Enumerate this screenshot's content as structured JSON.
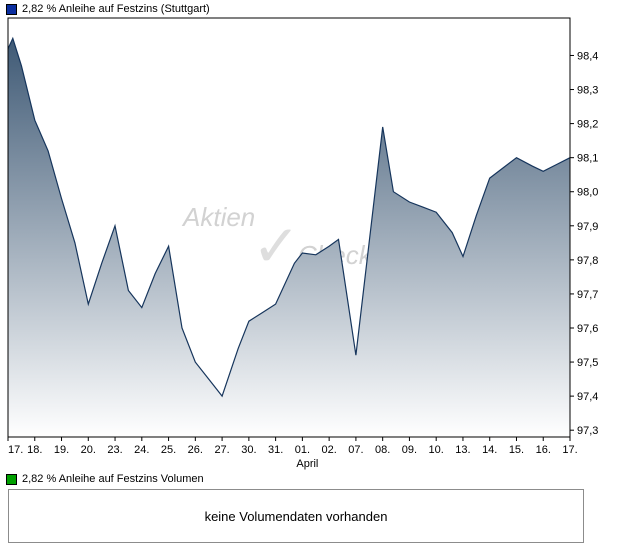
{
  "legend_price": {
    "label": "2,82 % Anleihe auf Festzins (Stuttgart)",
    "swatch_color": "#0b2fa0"
  },
  "legend_volume": {
    "label": "2,82 % Anleihe auf Festzins Volumen",
    "swatch_color": "#00a000"
  },
  "volume_panel": {
    "message": "keine Volumendaten vorhanden"
  },
  "watermark": {
    "part1": "Aktien",
    "check_icon": "✓",
    "part2": "Check"
  },
  "chart_data": {
    "type": "area",
    "title": "2,82 % Anleihe auf Festzins (Stuttgart)",
    "grid": false,
    "legend_position": "top-left",
    "x_axis_secondary_label": "April",
    "x_tick_labels": [
      "17.",
      "18.",
      "19.",
      "20.",
      "23.",
      "24.",
      "25.",
      "26.",
      "27.",
      "30.",
      "31.",
      "01.",
      "02.",
      "07.",
      "08.",
      "09.",
      "10.",
      "13.",
      "14.",
      "15.",
      "16.",
      "17."
    ],
    "y_ticks": [
      {
        "value": 97.3,
        "label": "97,3"
      },
      {
        "value": 97.4,
        "label": "97,4"
      },
      {
        "value": 97.5,
        "label": "97,5"
      },
      {
        "value": 97.6,
        "label": "97,6"
      },
      {
        "value": 97.7,
        "label": "97,7"
      },
      {
        "value": 97.8,
        "label": "97,8"
      },
      {
        "value": 97.9,
        "label": "97,9"
      },
      {
        "value": 98.0,
        "label": "98,0"
      },
      {
        "value": 98.1,
        "label": "98,1"
      },
      {
        "value": 98.2,
        "label": "98,2"
      },
      {
        "value": 98.3,
        "label": "98,3"
      },
      {
        "value": 98.4,
        "label": "98,4"
      }
    ],
    "ylim": [
      97.28,
      98.51
    ],
    "colors": {
      "line": "#16355c",
      "fill_top": "#35516e",
      "fill_bottom": "#ffffff"
    },
    "series": [
      {
        "name": "2,82 % Anleihe auf Festzins (Stuttgart)",
        "points": [
          [
            0,
            98.42
          ],
          [
            0.18,
            98.45
          ],
          [
            0.5,
            98.37
          ],
          [
            1,
            98.21
          ],
          [
            1.5,
            98.12
          ],
          [
            2,
            97.98
          ],
          [
            2.5,
            97.85
          ],
          [
            3,
            97.67
          ],
          [
            3.5,
            97.79
          ],
          [
            4,
            97.9
          ],
          [
            4.5,
            97.71
          ],
          [
            5,
            97.66
          ],
          [
            5.5,
            97.76
          ],
          [
            6,
            97.84
          ],
          [
            6.5,
            97.6
          ],
          [
            7,
            97.5
          ],
          [
            7.6,
            97.44
          ],
          [
            8,
            97.4
          ],
          [
            8.6,
            97.54
          ],
          [
            9,
            97.62
          ],
          [
            9.5,
            97.645
          ],
          [
            10,
            97.67
          ],
          [
            10.7,
            97.79
          ],
          [
            11,
            97.82
          ],
          [
            11.5,
            97.815
          ],
          [
            12,
            97.84
          ],
          [
            12.35,
            97.86
          ],
          [
            13,
            97.52
          ],
          [
            14,
            98.19
          ],
          [
            14.4,
            98.0
          ],
          [
            15,
            97.97
          ],
          [
            15.5,
            97.955
          ],
          [
            16,
            97.94
          ],
          [
            16.6,
            97.88
          ],
          [
            17,
            97.81
          ],
          [
            17.5,
            97.93
          ],
          [
            18,
            98.04
          ],
          [
            18.5,
            98.07
          ],
          [
            19,
            98.1
          ],
          [
            19.6,
            98.075
          ],
          [
            20,
            98.06
          ],
          [
            20.5,
            98.08
          ],
          [
            21,
            98.1
          ]
        ]
      }
    ]
  }
}
